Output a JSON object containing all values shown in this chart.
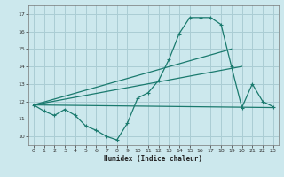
{
  "xlabel": "Humidex (Indice chaleur)",
  "bg_color": "#cce8ed",
  "grid_color": "#aacdd4",
  "line_color": "#1a7a6e",
  "x_ticks": [
    0,
    1,
    2,
    3,
    4,
    5,
    6,
    7,
    8,
    9,
    10,
    11,
    12,
    13,
    14,
    15,
    16,
    17,
    18,
    19,
    20,
    21,
    22,
    23
  ],
  "y_ticks": [
    10,
    11,
    12,
    13,
    14,
    15,
    16,
    17
  ],
  "xlim": [
    -0.5,
    23.5
  ],
  "ylim": [
    9.5,
    17.5
  ],
  "series1_x": [
    0,
    1,
    2,
    3,
    4,
    5,
    6,
    7,
    8,
    9,
    10,
    11,
    12,
    13,
    14,
    15,
    16,
    17,
    18,
    19,
    20,
    21,
    22,
    23
  ],
  "series1_y": [
    11.8,
    11.45,
    11.2,
    11.55,
    11.2,
    10.6,
    10.35,
    10.0,
    9.8,
    10.75,
    12.2,
    12.5,
    13.2,
    14.4,
    15.9,
    16.8,
    16.8,
    16.8,
    16.4,
    14.0,
    11.65,
    13.0,
    12.0,
    11.7
  ],
  "series2_x": [
    0,
    23
  ],
  "series2_y": [
    11.8,
    11.65
  ],
  "series3_x": [
    0,
    20
  ],
  "series3_y": [
    11.8,
    14.0
  ],
  "series4_x": [
    0,
    19
  ],
  "series4_y": [
    11.8,
    15.0
  ]
}
